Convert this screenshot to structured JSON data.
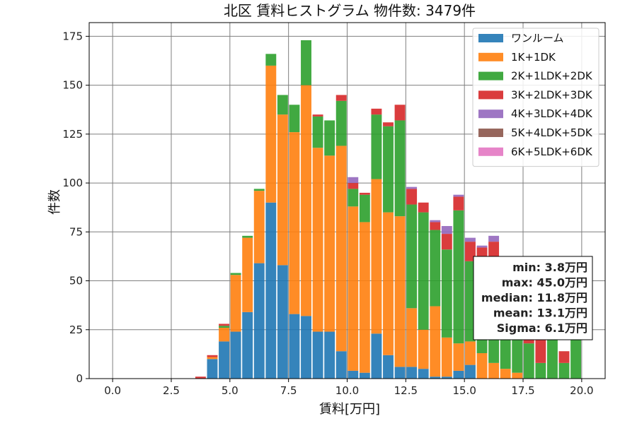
{
  "chart_data": {
    "type": "bar",
    "stacked": true,
    "title": "北区 賃料ヒストグラム  物件数: 3479件",
    "xlabel": "賃料[万円]",
    "ylabel": "件数",
    "xlim": [
      -1.0,
      21.0
    ],
    "ylim": [
      0,
      182
    ],
    "xticks": [
      "0.0",
      "2.5",
      "5.0",
      "7.5",
      "10.0",
      "12.5",
      "15.0",
      "17.5",
      "20.0"
    ],
    "xtick_values": [
      0,
      2.5,
      5,
      7.5,
      10,
      12.5,
      15,
      17.5,
      20
    ],
    "yticks": [
      "0",
      "25",
      "50",
      "75",
      "100",
      "125",
      "150",
      "175"
    ],
    "ytick_values": [
      0,
      25,
      50,
      75,
      100,
      125,
      150,
      175
    ],
    "grid": true,
    "legend_position": "top-right",
    "bin_width": 0.5,
    "bin_starts": [
      3.5,
      4.0,
      4.5,
      5.0,
      5.5,
      6.0,
      6.5,
      7.0,
      7.5,
      8.0,
      8.5,
      9.0,
      9.5,
      10.0,
      10.5,
      11.0,
      11.5,
      12.0,
      12.5,
      13.0,
      13.5,
      14.0,
      14.5,
      15.0,
      15.5,
      16.0,
      16.5,
      17.0,
      17.5,
      18.0,
      18.5,
      19.0,
      19.5
    ],
    "series": [
      {
        "name": "ワンルーム",
        "color": "#1f77b4",
        "values": [
          0,
          10,
          19,
          24,
          34,
          59,
          90,
          58,
          33,
          32,
          24,
          24,
          14,
          4,
          3,
          23,
          12,
          6,
          6,
          5,
          1,
          1,
          4,
          7,
          0,
          0,
          0,
          0,
          0,
          0,
          0,
          0,
          0
        ]
      },
      {
        "name": "1K+1DK",
        "color": "#ff7f0e",
        "values": [
          0,
          1,
          7,
          29,
          38,
          37,
          70,
          77,
          93,
          118,
          94,
          90,
          105,
          84,
          77,
          79,
          73,
          77,
          30,
          20,
          36,
          20,
          14,
          12,
          13,
          8,
          5,
          3,
          0,
          0,
          0,
          0,
          0
        ]
      },
      {
        "name": "2K+1LDK+2DK",
        "color": "#2ca02c",
        "values": [
          0,
          0,
          1,
          1,
          1,
          1,
          6,
          10,
          14,
          23,
          16,
          18,
          23,
          9,
          14,
          33,
          44,
          49,
          53,
          60,
          39,
          45,
          68,
          41,
          45,
          50,
          33,
          25,
          18,
          8,
          25,
          8,
          25
        ]
      },
      {
        "name": "3K+2LDK+3DK",
        "color": "#d62728",
        "values": [
          1,
          1,
          1,
          0,
          0,
          0,
          0,
          0,
          0,
          0,
          1,
          0,
          3,
          3,
          1,
          3,
          2,
          8,
          8,
          5,
          4,
          8,
          7,
          10,
          9,
          12,
          10,
          8,
          16,
          12,
          8,
          6,
          0
        ]
      },
      {
        "name": "4K+3LDK+4DK",
        "color": "#9467bd",
        "values": [
          0,
          0,
          0,
          0,
          0,
          0,
          0,
          0,
          0,
          0,
          0,
          0,
          0,
          3,
          0,
          0,
          0,
          0,
          1,
          0,
          1,
          4,
          1,
          2,
          1,
          3,
          0,
          0,
          0,
          0,
          0,
          0,
          0
        ]
      },
      {
        "name": "5K+4LDK+5DK",
        "color": "#8c564b",
        "values": [
          0,
          0,
          0,
          0,
          0,
          0,
          0,
          0,
          0,
          0,
          0,
          0,
          0,
          0,
          0,
          0,
          0,
          0,
          0,
          0,
          0,
          0,
          0,
          0,
          0,
          0,
          0,
          0,
          0,
          0,
          0,
          0,
          0
        ]
      },
      {
        "name": "6K+5LDK+6DK",
        "color": "#e377c2",
        "values": [
          0,
          0,
          0,
          0,
          0,
          0,
          0,
          0,
          0,
          0,
          0,
          0,
          0,
          0,
          0,
          0,
          0,
          0,
          0,
          0,
          0,
          0,
          0,
          0,
          0,
          0,
          0,
          0,
          0,
          0,
          0,
          0,
          0
        ]
      }
    ],
    "annotation_lines": [
      "min: 3.8万円",
      "max: 45.0万円",
      "median: 11.8万円",
      "mean: 13.1万円",
      "Sigma: 6.1万円"
    ]
  }
}
